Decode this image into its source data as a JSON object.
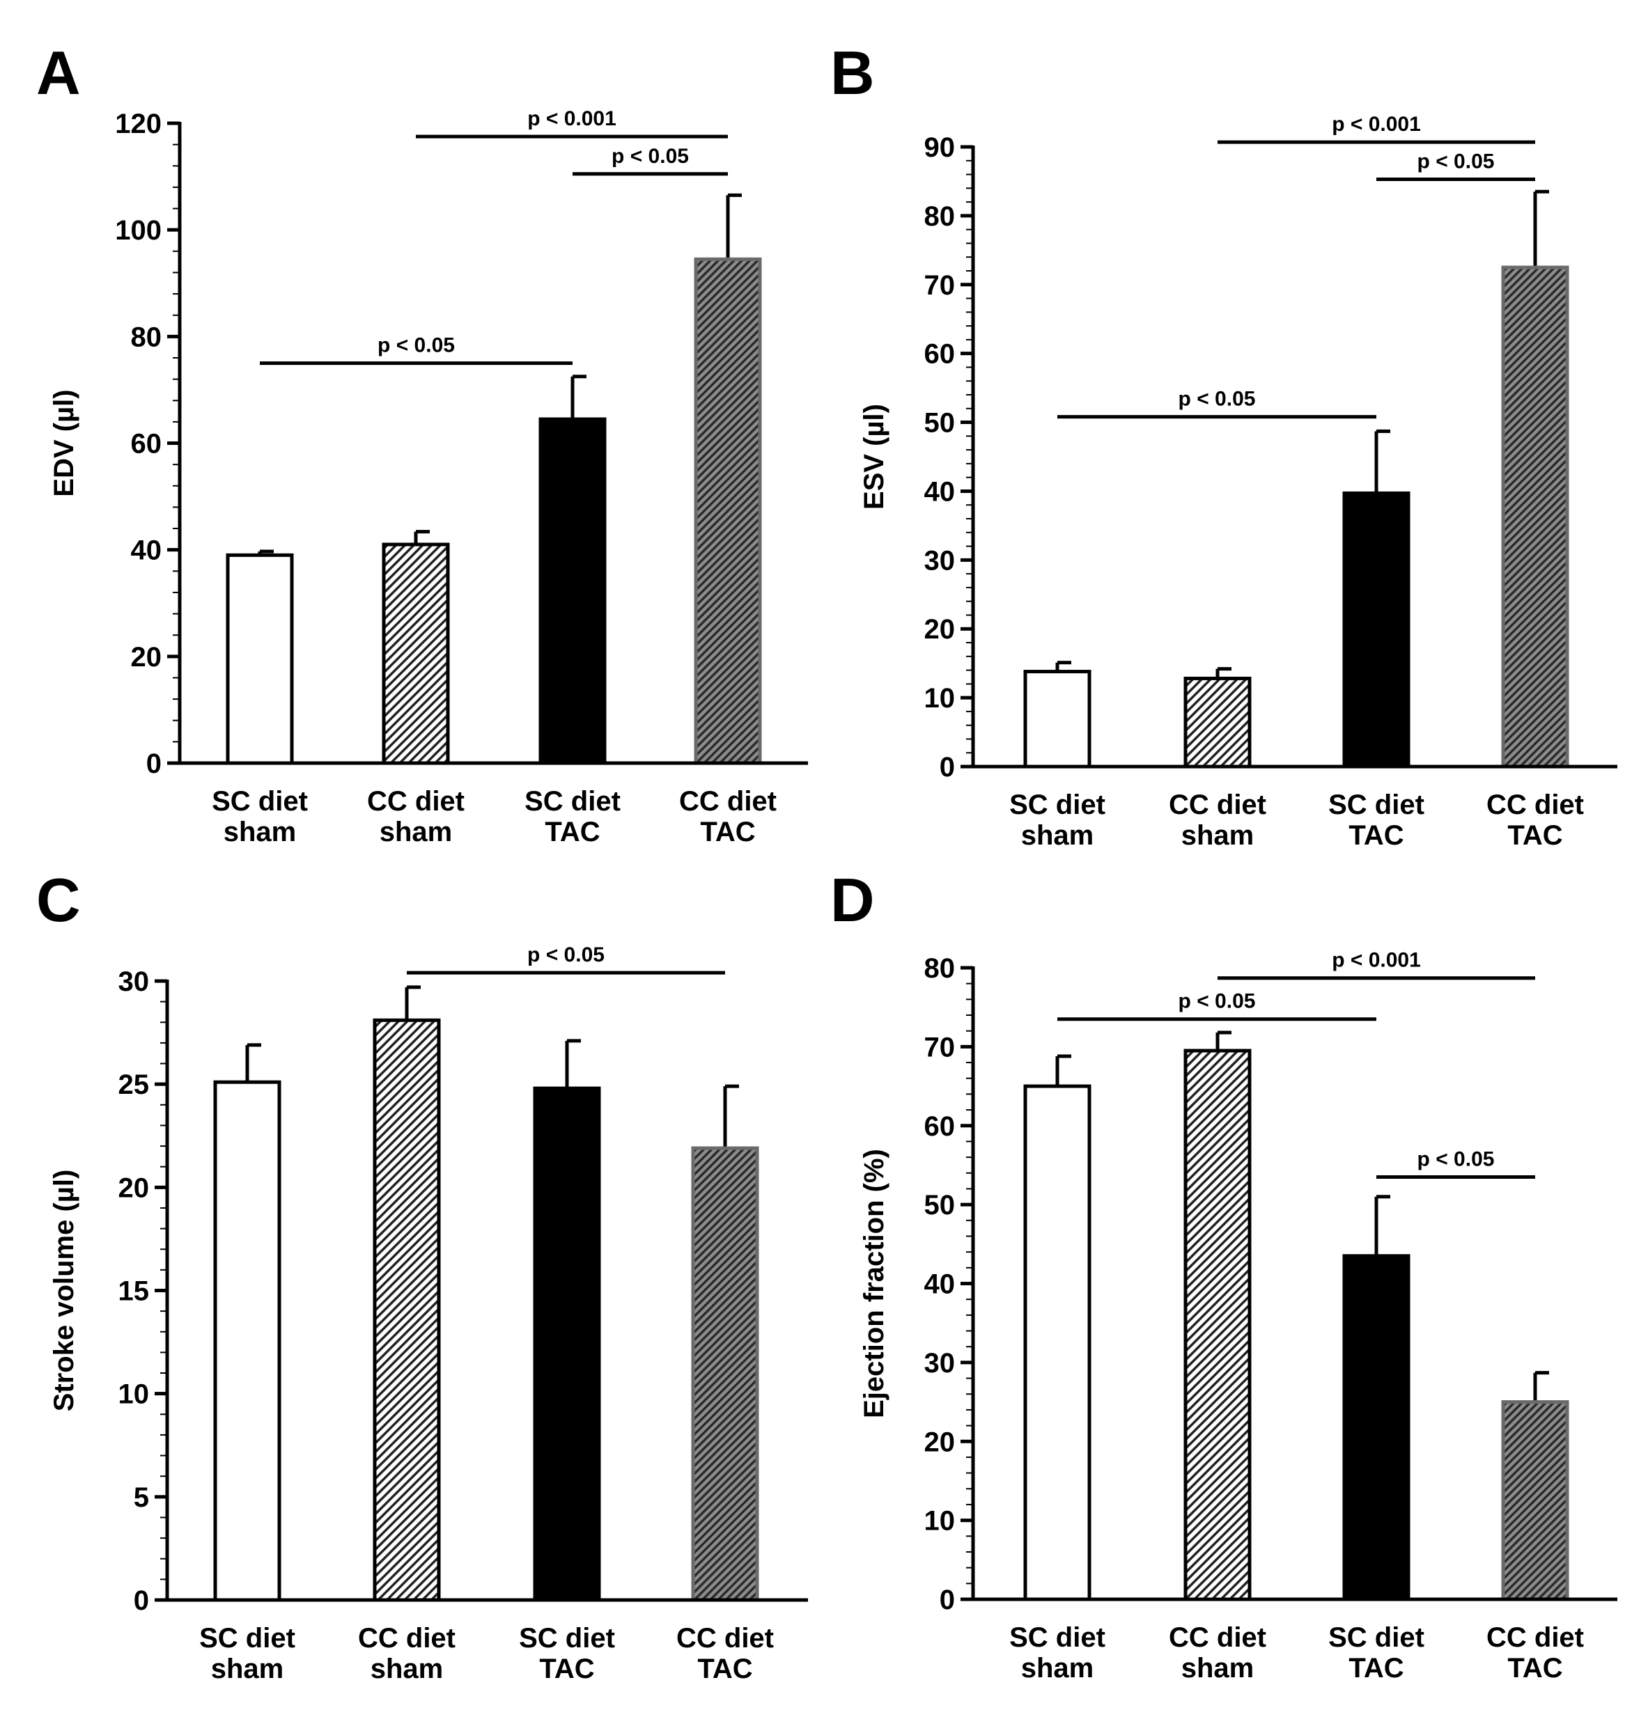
{
  "colors": {
    "white": "#ffffff",
    "black": "#000000",
    "light_hatch_fg": "#222222",
    "dark_hatch_bg": "#888888",
    "dark_hatch_fg": "#2a2a2a",
    "dark_border": "#666666"
  },
  "chart_data": [
    {
      "type": "bar",
      "panel_label": "A",
      "title": "",
      "xlabel": "",
      "ylabel": "EDV (µl)",
      "ylim": [
        0,
        120
      ],
      "yticks": [
        0,
        20,
        40,
        60,
        80,
        100,
        120
      ],
      "ytick_labels": [
        "0",
        "20",
        "40",
        "60",
        "80",
        "100",
        "120"
      ],
      "categories": [
        [
          "SC diet",
          "sham"
        ],
        [
          "CC diet",
          "sham"
        ],
        [
          "SC diet",
          "TAC"
        ],
        [
          "CC diet",
          "TAC"
        ]
      ],
      "values": [
        39,
        41,
        64.5,
        94.5
      ],
      "errors": [
        0.7,
        2.4,
        8,
        12
      ],
      "fills": [
        "white",
        "light-hatch",
        "black",
        "dark-hatch"
      ],
      "significance": [
        {
          "from": 1,
          "to": 3,
          "y": 117.5,
          "label": "p < 0.001"
        },
        {
          "from": 2,
          "to": 3,
          "y": 110.5,
          "label": "p < 0.05"
        },
        {
          "from": 0,
          "to": 2,
          "y": 75,
          "label": "p < 0.05"
        }
      ]
    },
    {
      "type": "bar",
      "panel_label": "B",
      "title": "",
      "xlabel": "",
      "ylabel": "ESV (µl)",
      "ylim": [
        0,
        90
      ],
      "yticks": [
        0,
        10,
        20,
        30,
        40,
        50,
        60,
        70,
        80,
        90
      ],
      "ytick_labels": [
        "0",
        "10",
        "20",
        "30",
        "40",
        "50",
        "60",
        "70",
        "80",
        "90"
      ],
      "categories": [
        [
          "SC diet",
          "sham"
        ],
        [
          "CC diet",
          "sham"
        ],
        [
          "SC diet",
          "TAC"
        ],
        [
          "CC diet",
          "TAC"
        ]
      ],
      "values": [
        13.8,
        12.8,
        39.7,
        72.5
      ],
      "errors": [
        1.3,
        1.4,
        9,
        11
      ],
      "fills": [
        "white",
        "light-hatch",
        "black",
        "dark-hatch"
      ],
      "significance": [
        {
          "from": 1,
          "to": 3,
          "y": 90.7,
          "label": "p < 0.001"
        },
        {
          "from": 2,
          "to": 3,
          "y": 85.3,
          "label": "p < 0.05"
        },
        {
          "from": 0,
          "to": 2,
          "y": 50.8,
          "label": "p < 0.05"
        }
      ]
    },
    {
      "type": "bar",
      "panel_label": "C",
      "title": "",
      "xlabel": "",
      "ylabel": "Stroke volume (µl)",
      "ylim": [
        0,
        30
      ],
      "yticks": [
        0,
        5,
        10,
        15,
        20,
        25,
        30
      ],
      "ytick_labels": [
        "0",
        "5",
        "10",
        "15",
        "20",
        "25",
        "30"
      ],
      "categories": [
        [
          "SC diet",
          "sham"
        ],
        [
          "CC diet",
          "sham"
        ],
        [
          "SC diet",
          "TAC"
        ],
        [
          "CC diet",
          "TAC"
        ]
      ],
      "values": [
        25.1,
        28.1,
        24.8,
        21.9
      ],
      "errors": [
        1.8,
        1.6,
        2.3,
        3
      ],
      "fills": [
        "white",
        "light-hatch",
        "black",
        "dark-hatch"
      ],
      "significance": [
        {
          "from": 1,
          "to": 3,
          "y": 30.4,
          "label": "p < 0.05"
        }
      ]
    },
    {
      "type": "bar",
      "panel_label": "D",
      "title": "",
      "xlabel": "",
      "ylabel": "Ejection fraction (%)",
      "ylim": [
        0,
        80
      ],
      "yticks": [
        0,
        10,
        20,
        30,
        40,
        50,
        60,
        70,
        80
      ],
      "ytick_labels": [
        "0",
        "10",
        "20",
        "30",
        "40",
        "50",
        "60",
        "70",
        "80"
      ],
      "categories": [
        [
          "SC diet",
          "sham"
        ],
        [
          "CC diet",
          "sham"
        ],
        [
          "SC diet",
          "TAC"
        ],
        [
          "CC diet",
          "TAC"
        ]
      ],
      "values": [
        65,
        69.5,
        43.5,
        25
      ],
      "errors": [
        3.8,
        2.3,
        7.5,
        3.7
      ],
      "fills": [
        "white",
        "light-hatch",
        "black",
        "dark-hatch"
      ],
      "significance": [
        {
          "from": 1,
          "to": 3,
          "y": 78.7,
          "label": "p < 0.001"
        },
        {
          "from": 0,
          "to": 2,
          "y": 73.5,
          "label": "p < 0.05"
        },
        {
          "from": 2,
          "to": 3,
          "y": 53.5,
          "label": "p < 0.05"
        }
      ]
    }
  ]
}
